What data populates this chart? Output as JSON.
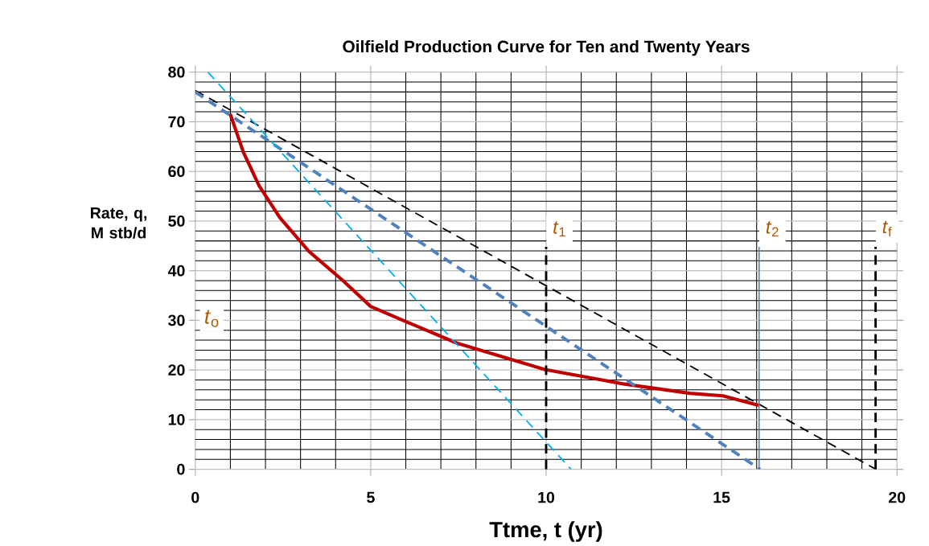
{
  "chart_data": {
    "type": "line",
    "title": "Oilfield Production Curve for Ten  and Twenty Years",
    "xlabel": "Ttme, t (yr)",
    "ylabel": "Rate,  q, M stb/d",
    "xlim": [
      0,
      20
    ],
    "ylim": [
      0,
      80
    ],
    "xticks": [
      0,
      5,
      10,
      15,
      20
    ],
    "yticks": [
      0,
      10,
      20,
      30,
      40,
      50,
      60,
      70,
      80
    ],
    "grid": true,
    "marker": "none",
    "series": [
      {
        "color": "#c00000",
        "line_style": "solid",
        "x": [
          0.995,
          1.37,
          1.82,
          2.41,
          3.24,
          4.21,
          5.0,
          6.22,
          7.46,
          9.96,
          12.2,
          14.1,
          15.04,
          16.05
        ],
        "values": [
          71.6,
          63.9,
          57.1,
          50.7,
          43.9,
          38.0,
          32.8,
          29.1,
          25.4,
          20.1,
          17.2,
          15.3,
          14.8,
          12.9
        ]
      },
      {
        "color": "#000000",
        "line_style": "dashed",
        "x": [
          0,
          19.4
        ],
        "values": [
          76.3,
          0
        ]
      },
      {
        "color": "#4f81bd",
        "line_style": "dashed",
        "x": [
          0,
          16.1
        ],
        "values": [
          76.0,
          0
        ]
      },
      {
        "color": "#00b0f0",
        "line_style": "dashed",
        "x": [
          0.36,
          10.71
        ],
        "values": [
          80,
          0
        ]
      }
    ],
    "ref_lines": [
      {
        "axis": "x",
        "value": 10,
        "label": "*t*$_{1}$",
        "color": "#000000",
        "line_style": "dashed"
      },
      {
        "axis": "x",
        "value": 16.07,
        "label": "*t*$_{2}$",
        "color": "#4f81bd",
        "line_style": "solid"
      },
      {
        "axis": "x",
        "value": 19.39,
        "label": "*t*$_{f}$",
        "color": "#000000",
        "line_style": "dashed"
      }
    ],
    "annotations": [
      "*t*$_{o}$"
    ]
  }
}
